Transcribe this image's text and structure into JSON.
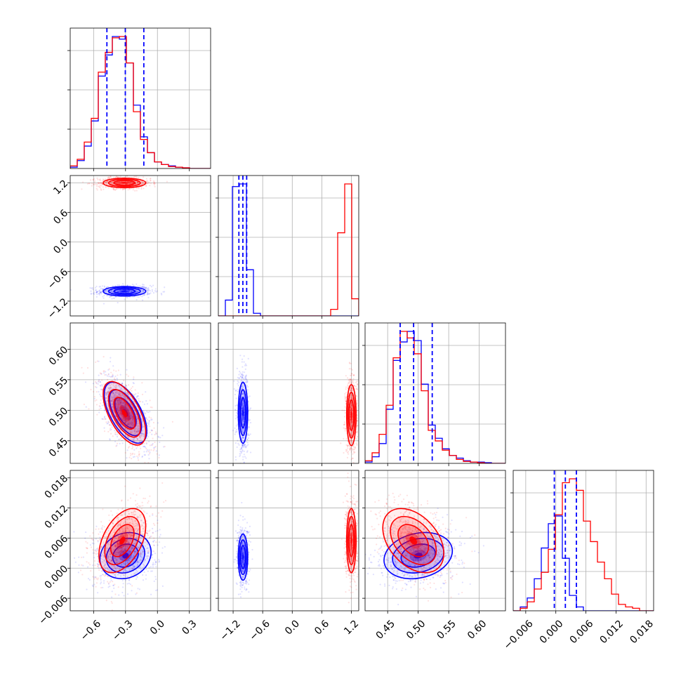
{
  "chart_data": {
    "type": "corner",
    "series": [
      {
        "name": "",
        "color": "#0000ff"
      },
      {
        "name": "",
        "color": "#ff0000"
      }
    ],
    "params": [
      {
        "xlim": [
          -0.82,
          0.5
        ],
        "ticks": [
          -0.6,
          -0.3,
          0.0,
          0.3
        ],
        "tick_labels": [
          "−0.6",
          "−0.3",
          "0.0",
          "0.3"
        ]
      },
      {
        "xlim": [
          -1.5,
          1.35
        ],
        "ticks": [
          -1.2,
          -0.6,
          0.0,
          0.6,
          1.2
        ],
        "tick_labels": [
          "−1.2",
          "−0.6",
          "0.0",
          "0.6",
          "1.2"
        ]
      },
      {
        "xlim": [
          0.413,
          0.643
        ],
        "ticks": [
          0.45,
          0.5,
          0.55,
          0.6
        ],
        "tick_labels": [
          "0.45",
          "0.50",
          "0.55",
          "0.60"
        ]
      },
      {
        "xlim": [
          -0.0085,
          0.0195
        ],
        "ticks": [
          -0.006,
          0.0,
          0.006,
          0.012,
          0.018
        ],
        "tick_labels": [
          "−0.006",
          "0.000",
          "0.006",
          "0.012",
          "0.018"
        ]
      }
    ],
    "marginals": [
      {
        "edges_start": -0.82,
        "bin_width": 0.066,
        "blue": [
          0.01,
          0.06,
          0.17,
          0.36,
          0.7,
          0.86,
          1.0,
          0.98,
          0.8,
          0.48,
          0.24,
          0.12,
          0.05,
          0.03,
          0.02,
          0.01,
          0.005,
          0.0,
          0.0,
          0.0
        ],
        "red": [
          0.02,
          0.07,
          0.2,
          0.38,
          0.73,
          0.88,
          0.99,
          1.0,
          0.8,
          0.43,
          0.22,
          0.12,
          0.05,
          0.03,
          0.015,
          0.01,
          0.005,
          0.0,
          0.0,
          0.0
        ],
        "quantiles_blue": [
          -0.475,
          -0.302,
          -0.128
        ]
      },
      {
        "edges_start": -1.5,
        "bin_width": 0.1425,
        "blue": [
          0.0,
          0.12,
          0.98,
          1.0,
          0.35,
          0.02,
          0.0,
          0.0,
          0.0,
          0.0,
          0.0,
          0.0,
          0.0,
          0.0,
          0.0,
          0.0,
          0.0,
          0.0,
          0.0,
          0.0
        ],
        "red": [
          0.0,
          0.0,
          0.0,
          0.0,
          0.0,
          0.0,
          0.0,
          0.0,
          0.0,
          0.0,
          0.0,
          0.0,
          0.0,
          0.0,
          0.0,
          0.0,
          0.05,
          0.63,
          1.0,
          0.13
        ],
        "quantiles_blue": [
          -1.083,
          -1.002,
          -0.925
        ]
      },
      {
        "edges_start": 0.413,
        "bin_width": 0.0115,
        "blue": [
          0.01,
          0.05,
          0.15,
          0.41,
          0.78,
          0.92,
          1.0,
          0.93,
          0.6,
          0.29,
          0.19,
          0.11,
          0.06,
          0.04,
          0.02,
          0.01,
          0.01,
          0.005,
          0.0,
          0.0
        ],
        "red": [
          0.02,
          0.08,
          0.22,
          0.44,
          0.8,
          1.0,
          0.95,
          0.83,
          0.55,
          0.25,
          0.17,
          0.1,
          0.06,
          0.03,
          0.015,
          0.01,
          0.005,
          0.0,
          0.0,
          0.0
        ],
        "quantiles_blue": [
          0.4705,
          0.4925,
          0.523
        ]
      },
      {
        "edges_start": -0.0085,
        "bin_width": 0.0014,
        "blue": [
          0.0,
          0.03,
          0.1,
          0.25,
          0.49,
          0.68,
          0.74,
          0.41,
          0.12,
          0.03,
          0.0,
          0.0,
          0.0,
          0.0,
          0.0,
          0.0,
          0.0,
          0.0,
          0.0,
          0.0
        ],
        "red": [
          0.0,
          0.02,
          0.07,
          0.17,
          0.3,
          0.48,
          0.75,
          1.0,
          1.03,
          0.94,
          0.7,
          0.54,
          0.38,
          0.25,
          0.13,
          0.05,
          0.03,
          0.02,
          0.0,
          0.0
        ],
        "quantiles_blue": [
          -0.0003,
          0.0019,
          0.0041
        ]
      }
    ],
    "joints": [
      {
        "i": 1,
        "j": 0,
        "blue": {
          "mean": [
            -0.31,
            -1.0
          ],
          "sd": [
            0.1,
            0.048
          ],
          "rho": 0.0
        },
        "red": {
          "mean": [
            -0.31,
            1.2
          ],
          "sd": [
            0.1,
            0.048
          ],
          "rho": 0.0
        }
      },
      {
        "i": 2,
        "j": 0,
        "blue": {
          "mean": [
            -0.3,
            0.496
          ],
          "sd": [
            0.1,
            0.025
          ],
          "rho": -0.6
        },
        "red": {
          "mean": [
            -0.31,
            0.495
          ],
          "sd": [
            0.1,
            0.026
          ],
          "rho": -0.6
        }
      },
      {
        "i": 2,
        "j": 1,
        "blue": {
          "mean": [
            -1.0,
            0.496
          ],
          "sd": [
            0.048,
            0.025
          ],
          "rho": 0.0
        },
        "red": {
          "mean": [
            1.2,
            0.492
          ],
          "sd": [
            0.048,
            0.025
          ],
          "rho": 0.0
        }
      },
      {
        "i": 3,
        "j": 0,
        "blue": {
          "mean": [
            -0.3,
            0.0025
          ],
          "sd": [
            0.12,
            0.0023
          ],
          "rho": 0.15
        },
        "red": {
          "mean": [
            -0.33,
            0.0055
          ],
          "sd": [
            0.11,
            0.0032
          ],
          "rho": 0.45
        }
      },
      {
        "i": 3,
        "j": 1,
        "blue": {
          "mean": [
            -1.0,
            0.0022
          ],
          "sd": [
            0.048,
            0.0023
          ],
          "rho": 0.0
        },
        "red": {
          "mean": [
            1.2,
            0.0055
          ],
          "sd": [
            0.048,
            0.0032
          ],
          "rho": 0.0
        }
      },
      {
        "i": 3,
        "j": 2,
        "blue": {
          "mean": [
            0.5,
            0.0025
          ],
          "sd": [
            0.028,
            0.0023
          ],
          "rho": 0.2
        },
        "red": {
          "mean": [
            0.492,
            0.0055
          ],
          "sd": [
            0.025,
            0.0032
          ],
          "rho": -0.4
        }
      }
    ],
    "contour_levels_sigma": [
      0.5,
      1.0,
      1.5,
      2.0
    ],
    "grid": true,
    "legend": "none"
  }
}
